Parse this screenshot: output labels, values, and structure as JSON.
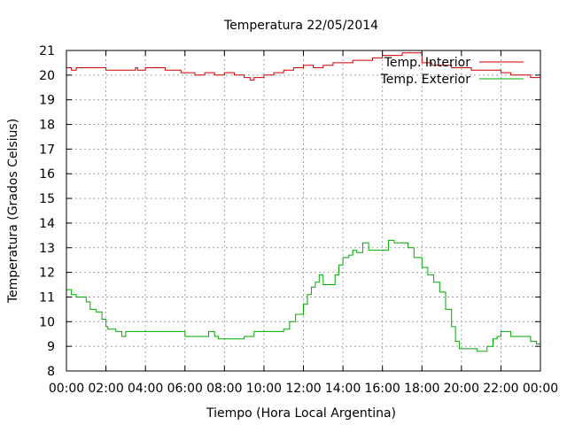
{
  "chart_data": {
    "type": "line",
    "title": "Temperatura 22/05/2014",
    "xlabel": "Tiempo (Hora Local Argentina)",
    "ylabel": "Temperatura (Grados Celsius)",
    "xlim": [
      0,
      24
    ],
    "ylim": [
      8,
      21
    ],
    "x_ticks": [
      0,
      2,
      4,
      6,
      8,
      10,
      12,
      14,
      16,
      18,
      20,
      22,
      24
    ],
    "x_tick_labels": [
      "00:00",
      "02:00",
      "04:00",
      "06:00",
      "08:00",
      "10:00",
      "12:00",
      "14:00",
      "16:00",
      "18:00",
      "20:00",
      "22:00",
      "00:00"
    ],
    "y_ticks": [
      8,
      9,
      10,
      11,
      12,
      13,
      14,
      15,
      16,
      17,
      18,
      19,
      20,
      21
    ],
    "y_tick_labels": [
      "8",
      "9",
      "10",
      "11",
      "12",
      "13",
      "14",
      "15",
      "16",
      "17",
      "18",
      "19",
      "20",
      "21"
    ],
    "grid": true,
    "legend_position": "top-right",
    "series": [
      {
        "name": "Temp. Interior",
        "color": "#cc0000",
        "x": [
          0.0,
          0.25,
          0.5,
          1.0,
          1.5,
          2.0,
          2.5,
          3.0,
          3.5,
          3.6,
          4.0,
          4.5,
          5.0,
          5.5,
          5.8,
          6.0,
          6.5,
          7.0,
          7.5,
          8.0,
          8.5,
          9.0,
          9.3,
          9.5,
          10.0,
          10.5,
          11.0,
          11.5,
          12.0,
          12.5,
          13.0,
          13.5,
          14.0,
          14.5,
          15.0,
          15.5,
          16.0,
          16.5,
          17.0,
          17.5,
          18.0,
          18.5,
          19.0,
          19.5,
          20.0,
          20.5,
          21.0,
          21.5,
          22.0,
          22.5,
          23.0,
          23.5,
          24.0
        ],
        "y": [
          20.3,
          20.2,
          20.3,
          20.3,
          20.3,
          20.2,
          20.2,
          20.2,
          20.3,
          20.2,
          20.3,
          20.3,
          20.2,
          20.2,
          20.1,
          20.1,
          20.0,
          20.1,
          20.0,
          20.1,
          20.0,
          19.9,
          19.8,
          19.9,
          20.0,
          20.1,
          20.2,
          20.3,
          20.4,
          20.3,
          20.4,
          20.5,
          20.5,
          20.6,
          20.6,
          20.7,
          20.8,
          20.8,
          20.9,
          20.9,
          20.5,
          20.4,
          20.4,
          20.3,
          20.3,
          20.2,
          20.2,
          20.2,
          20.1,
          20.0,
          20.0,
          19.9,
          19.9
        ]
      },
      {
        "name": "Temp. Exterior",
        "color": "#00aa00",
        "x": [
          0.0,
          0.25,
          0.5,
          0.8,
          1.0,
          1.2,
          1.5,
          1.8,
          2.0,
          2.1,
          2.5,
          2.7,
          2.8,
          3.0,
          3.5,
          4.0,
          4.5,
          5.0,
          5.5,
          5.8,
          6.0,
          6.5,
          7.0,
          7.2,
          7.5,
          7.7,
          8.0,
          8.5,
          9.0,
          9.5,
          10.0,
          10.5,
          10.8,
          11.0,
          11.3,
          11.6,
          12.0,
          12.2,
          12.4,
          12.6,
          12.8,
          13.0,
          13.3,
          13.6,
          13.8,
          14.0,
          14.3,
          14.5,
          14.7,
          15.0,
          15.3,
          15.6,
          16.0,
          16.3,
          16.6,
          17.0,
          17.3,
          17.6,
          18.0,
          18.3,
          18.6,
          18.9,
          19.2,
          19.5,
          19.7,
          19.9,
          20.2,
          20.5,
          20.8,
          21.0,
          21.3,
          21.6,
          21.8,
          22.0,
          22.5,
          23.0,
          23.5,
          23.8,
          24.0
        ],
        "y": [
          11.3,
          11.1,
          11.0,
          11.0,
          10.8,
          10.5,
          10.4,
          10.1,
          9.8,
          9.7,
          9.6,
          9.6,
          9.4,
          9.6,
          9.6,
          9.6,
          9.6,
          9.6,
          9.6,
          9.6,
          9.4,
          9.4,
          9.4,
          9.6,
          9.4,
          9.3,
          9.3,
          9.3,
          9.4,
          9.6,
          9.6,
          9.6,
          9.6,
          9.7,
          10.0,
          10.3,
          10.7,
          11.1,
          11.4,
          11.6,
          11.9,
          11.5,
          11.5,
          11.9,
          12.3,
          12.6,
          12.7,
          12.9,
          12.8,
          13.2,
          12.9,
          12.9,
          12.9,
          13.3,
          13.2,
          13.2,
          13.0,
          12.6,
          12.2,
          11.9,
          11.6,
          11.2,
          10.5,
          9.8,
          9.2,
          8.9,
          8.9,
          8.9,
          8.8,
          8.8,
          9.0,
          9.3,
          9.4,
          9.6,
          9.4,
          9.4,
          9.2,
          9.1,
          8.8
        ]
      }
    ]
  }
}
